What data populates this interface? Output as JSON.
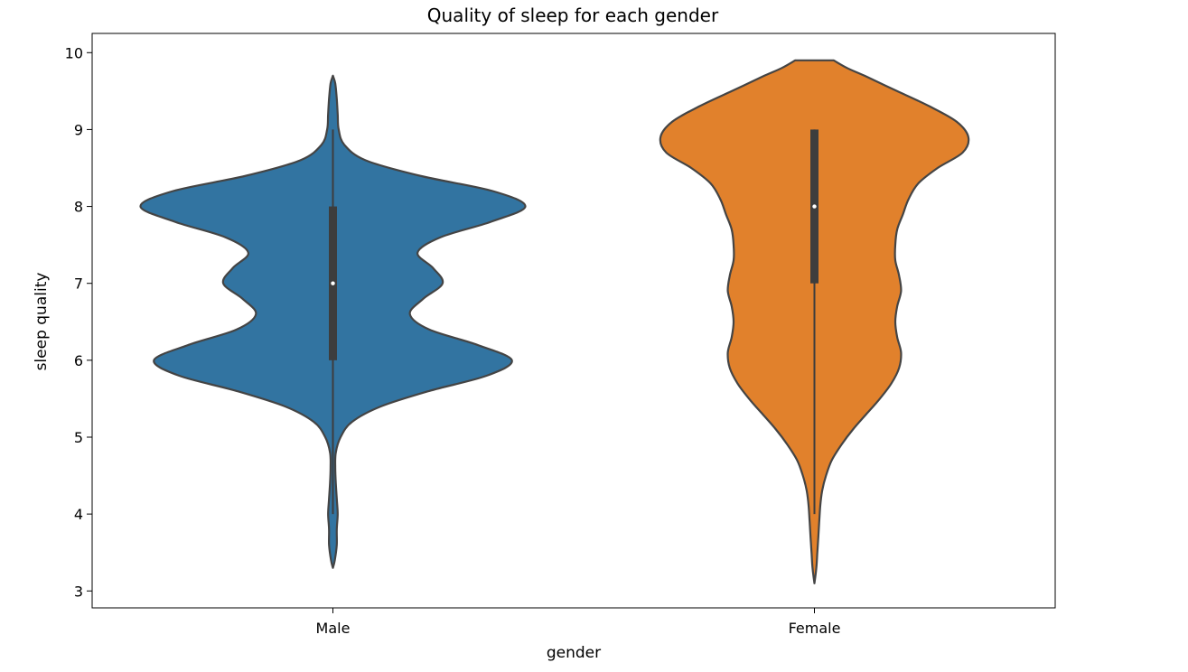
{
  "chart_data": {
    "type": "violin",
    "title": "Quality of sleep for each gender",
    "xlabel": "gender",
    "ylabel": "sleep quality",
    "categories": [
      "Male",
      "Female"
    ],
    "ylim": [
      2.78,
      10.25
    ],
    "yticks": [
      3,
      4,
      5,
      6,
      7,
      8,
      9,
      10
    ],
    "grid": false,
    "series": [
      {
        "category": "Male",
        "color": "#3274a1",
        "min": 4,
        "q1": 6,
        "median": 7,
        "q3": 8,
        "max": 9,
        "density": [
          [
            3.3,
            0.0
          ],
          [
            3.4,
            0.01
          ],
          [
            3.6,
            0.02
          ],
          [
            3.8,
            0.02
          ],
          [
            4.0,
            0.025
          ],
          [
            4.2,
            0.02
          ],
          [
            4.4,
            0.015
          ],
          [
            4.6,
            0.012
          ],
          [
            4.8,
            0.015
          ],
          [
            5.0,
            0.04
          ],
          [
            5.2,
            0.1
          ],
          [
            5.4,
            0.25
          ],
          [
            5.6,
            0.5
          ],
          [
            5.8,
            0.8
          ],
          [
            6.0,
            0.93
          ],
          [
            6.2,
            0.75
          ],
          [
            6.4,
            0.5
          ],
          [
            6.6,
            0.4
          ],
          [
            6.8,
            0.47
          ],
          [
            7.0,
            0.57
          ],
          [
            7.2,
            0.52
          ],
          [
            7.4,
            0.44
          ],
          [
            7.6,
            0.56
          ],
          [
            7.8,
            0.82
          ],
          [
            8.0,
            1.0
          ],
          [
            8.2,
            0.83
          ],
          [
            8.4,
            0.45
          ],
          [
            8.6,
            0.17
          ],
          [
            8.8,
            0.06
          ],
          [
            9.0,
            0.03
          ],
          [
            9.2,
            0.025
          ],
          [
            9.4,
            0.02
          ],
          [
            9.6,
            0.012
          ],
          [
            9.7,
            0.0
          ]
        ]
      },
      {
        "category": "Female",
        "color": "#e1812c",
        "min": 4,
        "q1": 7,
        "median": 8,
        "q3": 9,
        "max": 9,
        "density": [
          [
            3.1,
            0.0
          ],
          [
            3.3,
            0.01
          ],
          [
            3.5,
            0.015
          ],
          [
            3.7,
            0.02
          ],
          [
            3.9,
            0.025
          ],
          [
            4.1,
            0.03
          ],
          [
            4.3,
            0.04
          ],
          [
            4.5,
            0.06
          ],
          [
            4.7,
            0.09
          ],
          [
            4.9,
            0.14
          ],
          [
            5.1,
            0.2
          ],
          [
            5.3,
            0.27
          ],
          [
            5.5,
            0.34
          ],
          [
            5.7,
            0.4
          ],
          [
            5.9,
            0.44
          ],
          [
            6.1,
            0.45
          ],
          [
            6.3,
            0.43
          ],
          [
            6.5,
            0.42
          ],
          [
            6.7,
            0.43
          ],
          [
            6.9,
            0.45
          ],
          [
            7.1,
            0.44
          ],
          [
            7.3,
            0.42
          ],
          [
            7.5,
            0.42
          ],
          [
            7.7,
            0.43
          ],
          [
            7.9,
            0.46
          ],
          [
            8.1,
            0.49
          ],
          [
            8.3,
            0.54
          ],
          [
            8.5,
            0.64
          ],
          [
            8.7,
            0.77
          ],
          [
            8.9,
            0.8
          ],
          [
            9.1,
            0.74
          ],
          [
            9.3,
            0.6
          ],
          [
            9.5,
            0.43
          ],
          [
            9.7,
            0.26
          ],
          [
            9.8,
            0.17
          ],
          [
            9.9,
            0.1
          ]
        ]
      }
    ]
  }
}
